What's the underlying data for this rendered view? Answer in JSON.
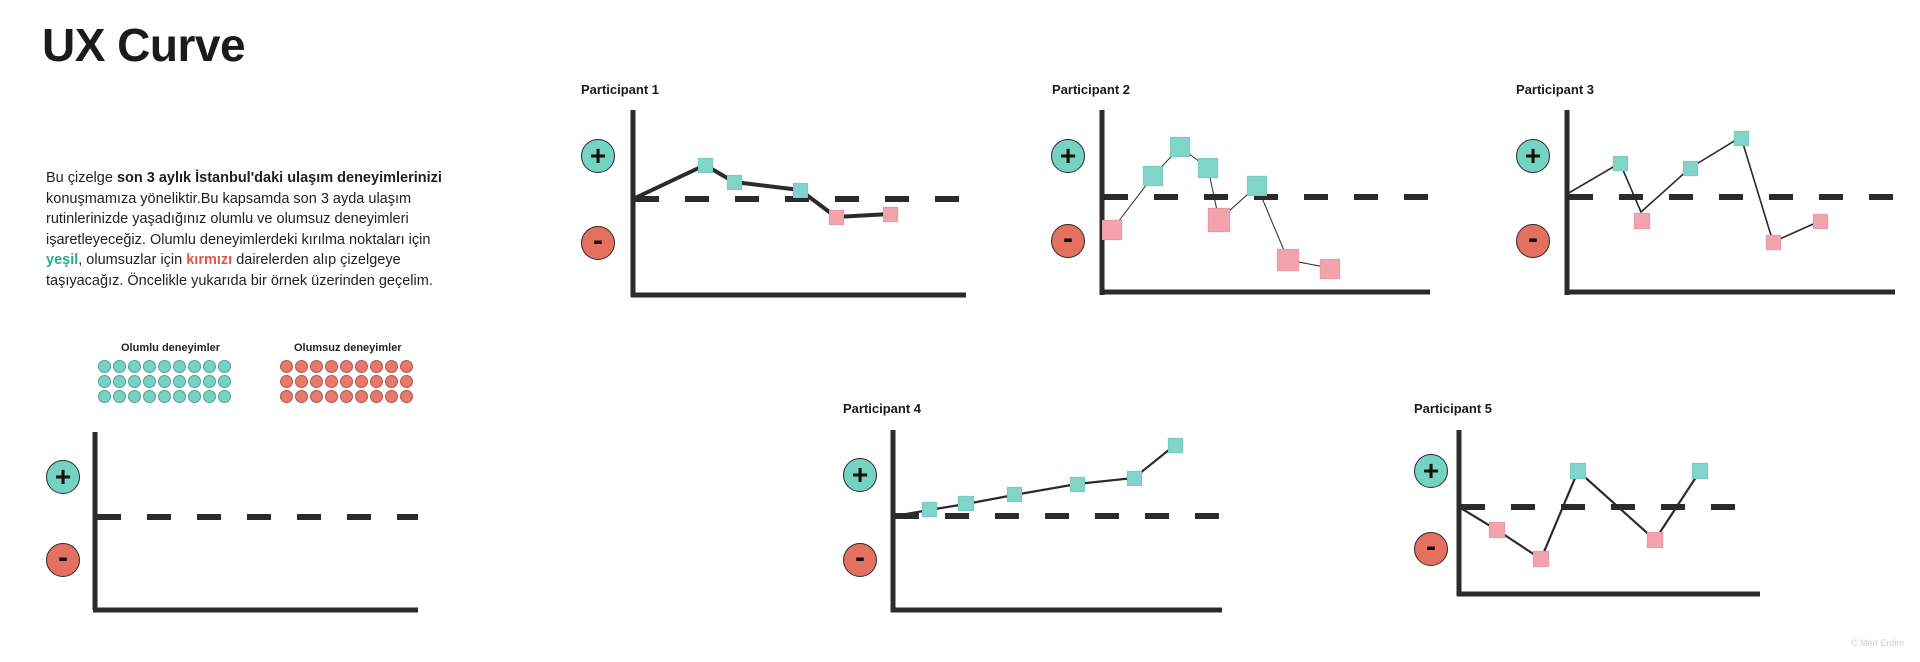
{
  "title": "UX Curve",
  "intro": {
    "part1": "Bu çizelge ",
    "bold1": "son 3 aylık İstanbul'daki ulaşım deneyimlerinizi",
    "part2": " konuşmamıza yöneliktir.Bu kapsamda son 3 ayda ulaşım rutinlerinizde yaşadığınız olumlu ve olumsuz deneyimleri işaretleyeceğiz. Olumlu deneyimlerdeki kırılma noktaları için ",
    "green_word": "yeşil",
    "part3": ", olumsuzlar için ",
    "red_word": "kırmızı",
    "part4": " dairelerden alıp çizelgeye taşıyacağız. Öncelikle yukarıda bir örnek üzerinden geçelim."
  },
  "palette": {
    "positive_label": "Olumlu deneyimler",
    "negative_label": "Olumsuz deneyimler",
    "rows": 3,
    "cols": 9,
    "positive_color": "#74d3c3",
    "negative_color": "#e8786a"
  },
  "signs": {
    "plus": "+",
    "minus": "-"
  },
  "participants": [
    {
      "label": "Participant 1"
    },
    {
      "label": "Participant 2"
    },
    {
      "label": "Participant 3"
    },
    {
      "label": "Participant 4"
    },
    {
      "label": "Participant 5"
    }
  ],
  "credit": "© Mert Erdim"
}
